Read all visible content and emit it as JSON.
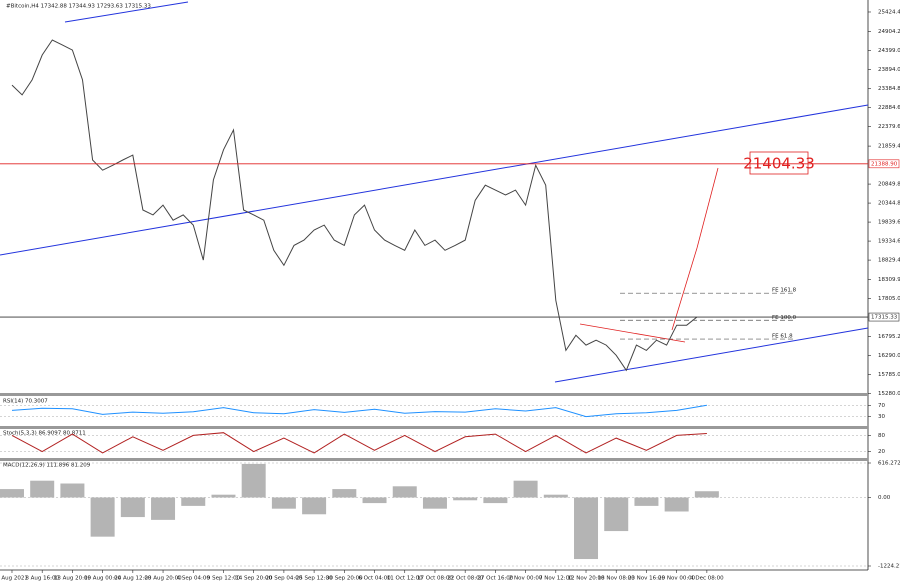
{
  "chart_data": [
    {
      "type": "line",
      "title": "#Bitcoin,H4 17342.88 17344.93 17293.63 17315.33",
      "annotation": "21404.33",
      "color": "#444444",
      "values": [
        23480,
        23220,
        23620,
        24280,
        24680,
        24550,
        24410,
        23620,
        21490,
        21220,
        21350,
        21490,
        21620,
        20160,
        20030,
        20290,
        19890,
        20030,
        19760,
        18830,
        20960,
        21760,
        22290,
        20160,
        20030,
        19890,
        19090,
        18690,
        19220,
        19360,
        19630,
        19760,
        19360,
        19220,
        20030,
        20290,
        19630,
        19360,
        19220,
        19090,
        19630,
        19220,
        19360,
        19090,
        19220,
        19360,
        20420,
        20820,
        20690,
        20560,
        20690,
        20290,
        21350,
        20820,
        17760,
        16430,
        16830,
        16570,
        16700,
        16570,
        16300,
        15900,
        16570,
        16430,
        16700,
        16570,
        17100,
        17100,
        17315.33
      ],
      "xlim": [
        -1.19,
        85.0
      ],
      "ylim": [
        15270,
        25743
      ],
      "xticks": [
        {
          "value": 0,
          "label": "3 Aug 2021"
        },
        {
          "value": 3,
          "label": "8 Aug 16:00"
        },
        {
          "value": 6,
          "label": "13 Aug 20:00"
        },
        {
          "value": 9,
          "label": "19 Aug 00:00"
        },
        {
          "value": 12,
          "label": "24 Aug 12:00"
        },
        {
          "value": 15,
          "label": "29 Aug 20:00"
        },
        {
          "value": 18,
          "label": "4 Sep 04:00"
        },
        {
          "value": 21,
          "label": "9 Sep 12:00"
        },
        {
          "value": 24,
          "label": "14 Sep 20:00"
        },
        {
          "value": 27,
          "label": "20 Sep 04:00"
        },
        {
          "value": 30,
          "label": "25 Sep 12:00"
        },
        {
          "value": 33,
          "label": "30 Sep 20:00"
        },
        {
          "value": 36,
          "label": "6 Oct 04:00"
        },
        {
          "value": 39,
          "label": "11 Oct 12:00"
        },
        {
          "value": 42,
          "label": "17 Oct 08:00"
        },
        {
          "value": 45,
          "label": "22 Oct 08:00"
        },
        {
          "value": 48,
          "label": "27 Oct 16:00"
        },
        {
          "value": 51,
          "label": "2 Nov 00:00"
        },
        {
          "value": 54,
          "label": "7 Nov 12:00"
        },
        {
          "value": 57,
          "label": "12 Nov 20:00"
        },
        {
          "value": 60,
          "label": "18 Nov 08:00"
        },
        {
          "value": 63,
          "label": "23 Nov 16:00"
        },
        {
          "value": 66,
          "label": "29 Nov 00:00"
        },
        {
          "value": 69,
          "label": "4 Dec 08:00"
        }
      ],
      "yticks": [
        {
          "value": 25424.4,
          "label": "25424.40"
        },
        {
          "value": 24904.2,
          "label": "24904.20"
        },
        {
          "value": 24399,
          "label": "24399.00"
        },
        {
          "value": 23894,
          "label": "23894.00"
        },
        {
          "value": 23384.8,
          "label": "23384.80"
        },
        {
          "value": 22884.6,
          "label": "22884.60"
        },
        {
          "value": 22379.6,
          "label": "22379.60"
        },
        {
          "value": 21859.4,
          "label": "21859.40"
        },
        {
          "value": 20849.8,
          "label": "20849.80"
        },
        {
          "value": 20344.8,
          "label": "20344.80"
        },
        {
          "value": 19839.6,
          "label": "19839.60"
        },
        {
          "value": 19334.6,
          "label": "19334.60"
        },
        {
          "value": 18829.4,
          "label": "18829.40"
        },
        {
          "value": 18309.9,
          "label": "18309.90"
        },
        {
          "value": 17805,
          "label": "17805.00"
        },
        {
          "value": 16795.2,
          "label": "16795.20"
        },
        {
          "value": 16290,
          "label": "16290.00"
        },
        {
          "value": 15785,
          "label": "15785.00"
        },
        {
          "value": 15280,
          "label": "15280.00"
        }
      ],
      "price_lines": [
        {
          "value": 21388.9,
          "label": "21388.90",
          "color": "#e02020"
        },
        {
          "value": 17315.33,
          "label": "17315.33",
          "color": "#333333"
        }
      ],
      "fib_levels": [
        {
          "value": 17950,
          "label": "FE 161.8"
        },
        {
          "value": 17230,
          "label": "FE 100.0"
        },
        {
          "value": 16730,
          "label": "FE 61.8"
        }
      ]
    },
    {
      "type": "line",
      "title": "RSI(14) 70.3007",
      "color": "#1e90ff",
      "x": [
        0,
        3,
        6,
        9,
        12,
        15,
        18,
        21,
        24,
        27,
        30,
        33,
        36,
        39,
        42,
        45,
        48,
        51,
        54,
        57,
        60,
        63,
        66,
        69
      ],
      "values": [
        52,
        60,
        58,
        38,
        46,
        42,
        47,
        62,
        44,
        40,
        55,
        45,
        56,
        42,
        48,
        46,
        58,
        50,
        62,
        30,
        40,
        44,
        52,
        70.3007
      ],
      "ylim": [
        0,
        100
      ],
      "yticks": [
        70,
        30
      ]
    },
    {
      "type": "line",
      "title": "Stoch(5,3,3) 86.9097 80.8711",
      "color": "#b22222",
      "x": [
        0,
        3,
        6,
        9,
        12,
        15,
        18,
        21,
        24,
        27,
        30,
        33,
        36,
        39,
        42,
        45,
        48,
        51,
        54,
        57,
        60,
        63,
        66,
        69
      ],
      "values": [
        80,
        20,
        85,
        15,
        75,
        25,
        80,
        90,
        20,
        70,
        15,
        85,
        25,
        80,
        20,
        75,
        85,
        20,
        80,
        15,
        70,
        25,
        80,
        86.9097
      ],
      "ylim": [
        0,
        100
      ],
      "yticks": [
        80,
        20
      ]
    },
    {
      "type": "bar",
      "title": "MACD(12,26,9) 111.896 81.209",
      "color": "#b4b4b4",
      "x": [
        0,
        3,
        6,
        9,
        12,
        15,
        18,
        21,
        24,
        27,
        30,
        33,
        36,
        39,
        42,
        45,
        48,
        51,
        54,
        57,
        60,
        63,
        66,
        69
      ],
      "values": [
        150,
        300,
        250,
        -700,
        -350,
        -400,
        -150,
        50,
        600,
        -200,
        -300,
        150,
        -100,
        200,
        -200,
        -50,
        -100,
        300,
        50,
        -1100,
        -600,
        -150,
        -250,
        111.896
      ],
      "ylim": [
        -1224.21,
        616.272
      ],
      "yticks": [
        616.272,
        {
          "value": 0,
          "label": "0.00"
        },
        -1224.21
      ]
    }
  ]
}
